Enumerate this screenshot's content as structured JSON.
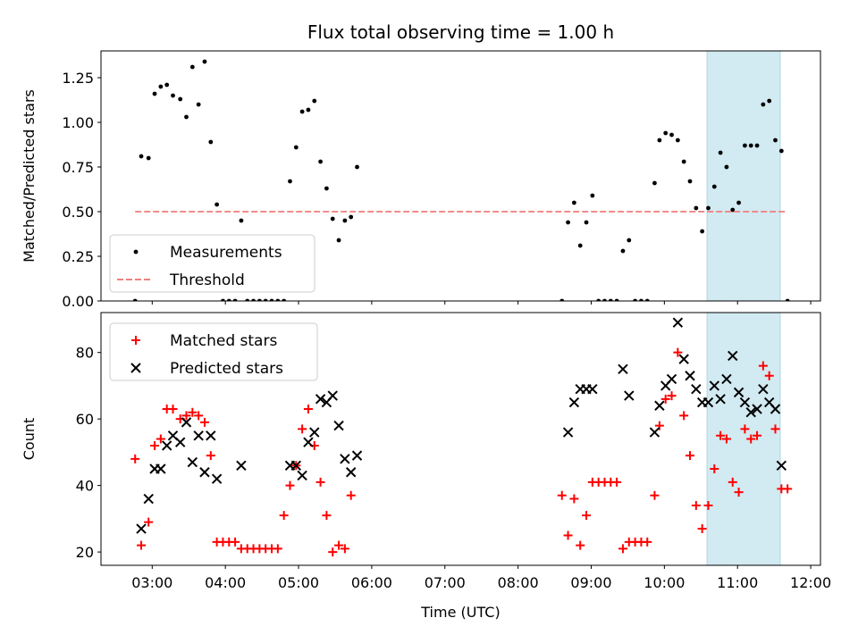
{
  "chart_data": [
    {
      "type": "scatter",
      "title": "Flux total observing time = 1.00 h",
      "xlabel": "",
      "ylabel": "Matched/Predicted stars",
      "xlim": [
        "02:18",
        "12:08"
      ],
      "ylim": [
        0,
        1.4
      ],
      "yticks": [
        0.0,
        0.25,
        0.5,
        0.75,
        1.0,
        1.25
      ],
      "ytick_labels": [
        "0.00",
        "0.25",
        "0.50",
        "0.75",
        "1.00",
        "1.25"
      ],
      "xticks": [
        "03:00",
        "04:00",
        "05:00",
        "06:00",
        "07:00",
        "08:00",
        "09:00",
        "10:00",
        "11:00",
        "12:00"
      ],
      "shaded_span": [
        "10:35",
        "11:35"
      ],
      "legend_loc": "lower-left",
      "series": [
        {
          "name": "Measurements",
          "marker": "dot",
          "color": "#000000",
          "points": [
            [
              "02:46",
              0.0
            ],
            [
              "02:51",
              0.81
            ],
            [
              "02:57",
              0.8
            ],
            [
              "03:02",
              1.16
            ],
            [
              "03:07",
              1.2
            ],
            [
              "03:12",
              1.21
            ],
            [
              "03:17",
              1.15
            ],
            [
              "03:23",
              1.13
            ],
            [
              "03:28",
              1.03
            ],
            [
              "03:33",
              1.31
            ],
            [
              "03:38",
              1.1
            ],
            [
              "03:43",
              1.34
            ],
            [
              "03:48",
              0.89
            ],
            [
              "03:53",
              0.54
            ],
            [
              "03:58",
              0.0
            ],
            [
              "04:03",
              0.0
            ],
            [
              "04:08",
              0.0
            ],
            [
              "04:13",
              0.45
            ],
            [
              "04:18",
              0.0
            ],
            [
              "04:23",
              0.0
            ],
            [
              "04:28",
              0.0
            ],
            [
              "04:33",
              0.0
            ],
            [
              "04:38",
              0.0
            ],
            [
              "04:43",
              0.0
            ],
            [
              "04:48",
              0.0
            ],
            [
              "04:53",
              0.67
            ],
            [
              "04:58",
              0.86
            ],
            [
              "05:03",
              1.06
            ],
            [
              "05:08",
              1.07
            ],
            [
              "05:13",
              1.12
            ],
            [
              "05:18",
              0.78
            ],
            [
              "05:23",
              0.63
            ],
            [
              "05:28",
              0.46
            ],
            [
              "05:33",
              0.34
            ],
            [
              "05:38",
              0.45
            ],
            [
              "05:43",
              0.47
            ],
            [
              "05:48",
              0.75
            ],
            [
              "08:36",
              0.0
            ],
            [
              "08:41",
              0.44
            ],
            [
              "08:46",
              0.55
            ],
            [
              "08:51",
              0.31
            ],
            [
              "08:56",
              0.44
            ],
            [
              "09:01",
              0.59
            ],
            [
              "09:06",
              0.0
            ],
            [
              "09:11",
              0.0
            ],
            [
              "09:16",
              0.0
            ],
            [
              "09:21",
              0.0
            ],
            [
              "09:26",
              0.28
            ],
            [
              "09:31",
              0.34
            ],
            [
              "09:36",
              0.0
            ],
            [
              "09:41",
              0.0
            ],
            [
              "09:46",
              0.0
            ],
            [
              "09:52",
              0.66
            ],
            [
              "09:56",
              0.9
            ],
            [
              "10:01",
              0.94
            ],
            [
              "10:06",
              0.93
            ],
            [
              "10:11",
              0.9
            ],
            [
              "10:16",
              0.78
            ],
            [
              "10:21",
              0.67
            ],
            [
              "10:26",
              0.52
            ],
            [
              "10:31",
              0.39
            ],
            [
              "10:36",
              0.52
            ],
            [
              "10:41",
              0.64
            ],
            [
              "10:46",
              0.83
            ],
            [
              "10:51",
              0.75
            ],
            [
              "10:56",
              0.51
            ],
            [
              "11:01",
              0.55
            ],
            [
              "11:06",
              0.87
            ],
            [
              "11:11",
              0.87
            ],
            [
              "11:16",
              0.87
            ],
            [
              "11:21",
              1.1
            ],
            [
              "11:26",
              1.12
            ],
            [
              "11:31",
              0.9
            ],
            [
              "11:36",
              0.84
            ],
            [
              "11:41",
              0.0
            ]
          ]
        },
        {
          "name": "Threshold",
          "marker": "dashed-line",
          "color": "#f08080",
          "points": [
            [
              "02:46",
              0.5
            ],
            [
              "11:41",
              0.5
            ]
          ]
        }
      ]
    },
    {
      "type": "scatter",
      "title": "",
      "xlabel": "Time (UTC)",
      "ylabel": "Count",
      "xlim": [
        "02:18",
        "12:08"
      ],
      "ylim": [
        16,
        92
      ],
      "yticks": [
        20,
        40,
        60,
        80
      ],
      "ytick_labels": [
        "20",
        "40",
        "60",
        "80"
      ],
      "xticks": [
        "03:00",
        "04:00",
        "05:00",
        "06:00",
        "07:00",
        "08:00",
        "09:00",
        "10:00",
        "11:00",
        "12:00"
      ],
      "shaded_span": [
        "10:35",
        "11:35"
      ],
      "legend_loc": "upper-left",
      "series": [
        {
          "name": "Matched stars",
          "marker": "plus",
          "color": "#ff0000",
          "points": [
            [
              "02:46",
              48
            ],
            [
              "02:51",
              22
            ],
            [
              "02:57",
              29
            ],
            [
              "03:02",
              52
            ],
            [
              "03:07",
              54
            ],
            [
              "03:12",
              63
            ],
            [
              "03:17",
              63
            ],
            [
              "03:23",
              60
            ],
            [
              "03:28",
              61
            ],
            [
              "03:33",
              62
            ],
            [
              "03:38",
              61
            ],
            [
              "03:43",
              59
            ],
            [
              "03:48",
              49
            ],
            [
              "03:53",
              23
            ],
            [
              "03:58",
              23
            ],
            [
              "04:03",
              23
            ],
            [
              "04:08",
              23
            ],
            [
              "04:13",
              21
            ],
            [
              "04:18",
              21
            ],
            [
              "04:23",
              21
            ],
            [
              "04:28",
              21
            ],
            [
              "04:33",
              21
            ],
            [
              "04:38",
              21
            ],
            [
              "04:43",
              21
            ],
            [
              "04:48",
              31
            ],
            [
              "04:53",
              40
            ],
            [
              "04:58",
              46
            ],
            [
              "05:03",
              57
            ],
            [
              "05:08",
              63
            ],
            [
              "05:13",
              52
            ],
            [
              "05:18",
              41
            ],
            [
              "05:23",
              31
            ],
            [
              "05:28",
              20
            ],
            [
              "05:33",
              22
            ],
            [
              "05:38",
              21
            ],
            [
              "05:43",
              37
            ],
            [
              "08:36",
              37
            ],
            [
              "08:41",
              25
            ],
            [
              "08:46",
              36
            ],
            [
              "08:51",
              22
            ],
            [
              "08:56",
              31
            ],
            [
              "09:01",
              41
            ],
            [
              "09:06",
              41
            ],
            [
              "09:11",
              41
            ],
            [
              "09:16",
              41
            ],
            [
              "09:21",
              41
            ],
            [
              "09:26",
              21
            ],
            [
              "09:31",
              23
            ],
            [
              "09:36",
              23
            ],
            [
              "09:41",
              23
            ],
            [
              "09:46",
              23
            ],
            [
              "09:52",
              37
            ],
            [
              "09:56",
              58
            ],
            [
              "10:01",
              66
            ],
            [
              "10:06",
              67
            ],
            [
              "10:11",
              80
            ],
            [
              "10:16",
              61
            ],
            [
              "10:21",
              49
            ],
            [
              "10:26",
              34
            ],
            [
              "10:31",
              27
            ],
            [
              "10:36",
              34
            ],
            [
              "10:41",
              45
            ],
            [
              "10:46",
              55
            ],
            [
              "10:51",
              54
            ],
            [
              "10:56",
              41
            ],
            [
              "11:01",
              38
            ],
            [
              "11:06",
              57
            ],
            [
              "11:11",
              54
            ],
            [
              "11:16",
              55
            ],
            [
              "11:21",
              76
            ],
            [
              "11:26",
              73
            ],
            [
              "11:31",
              57
            ],
            [
              "11:36",
              39
            ],
            [
              "11:41",
              39
            ]
          ]
        },
        {
          "name": "Predicted stars",
          "marker": "x",
          "color": "#000000",
          "points": [
            [
              "02:51",
              27
            ],
            [
              "02:57",
              36
            ],
            [
              "03:02",
              45
            ],
            [
              "03:07",
              45
            ],
            [
              "03:12",
              52
            ],
            [
              "03:17",
              55
            ],
            [
              "03:23",
              53
            ],
            [
              "03:28",
              59
            ],
            [
              "03:33",
              47
            ],
            [
              "03:38",
              55
            ],
            [
              "03:43",
              44
            ],
            [
              "03:48",
              55
            ],
            [
              "03:53",
              42
            ],
            [
              "04:13",
              46
            ],
            [
              "04:53",
              46
            ],
            [
              "04:58",
              46
            ],
            [
              "05:03",
              43
            ],
            [
              "05:08",
              53
            ],
            [
              "05:13",
              56
            ],
            [
              "05:18",
              66
            ],
            [
              "05:23",
              65
            ],
            [
              "05:28",
              67
            ],
            [
              "05:33",
              58
            ],
            [
              "05:38",
              48
            ],
            [
              "05:43",
              44
            ],
            [
              "05:48",
              49
            ],
            [
              "08:41",
              56
            ],
            [
              "08:46",
              65
            ],
            [
              "08:51",
              69
            ],
            [
              "08:56",
              69
            ],
            [
              "09:01",
              69
            ],
            [
              "09:26",
              75
            ],
            [
              "09:31",
              67
            ],
            [
              "09:52",
              56
            ],
            [
              "09:56",
              64
            ],
            [
              "10:01",
              70
            ],
            [
              "10:06",
              72
            ],
            [
              "10:11",
              89
            ],
            [
              "10:16",
              78
            ],
            [
              "10:21",
              73
            ],
            [
              "10:26",
              69
            ],
            [
              "10:31",
              65
            ],
            [
              "10:36",
              65
            ],
            [
              "10:41",
              70
            ],
            [
              "10:46",
              66
            ],
            [
              "10:51",
              72
            ],
            [
              "10:56",
              79
            ],
            [
              "11:01",
              68
            ],
            [
              "11:06",
              65
            ],
            [
              "11:11",
              62
            ],
            [
              "11:16",
              63
            ],
            [
              "11:21",
              69
            ],
            [
              "11:26",
              65
            ],
            [
              "11:31",
              63
            ],
            [
              "11:36",
              46
            ]
          ]
        }
      ]
    }
  ],
  "colors": {
    "shade": "#add8e6",
    "axes": "#000000"
  }
}
